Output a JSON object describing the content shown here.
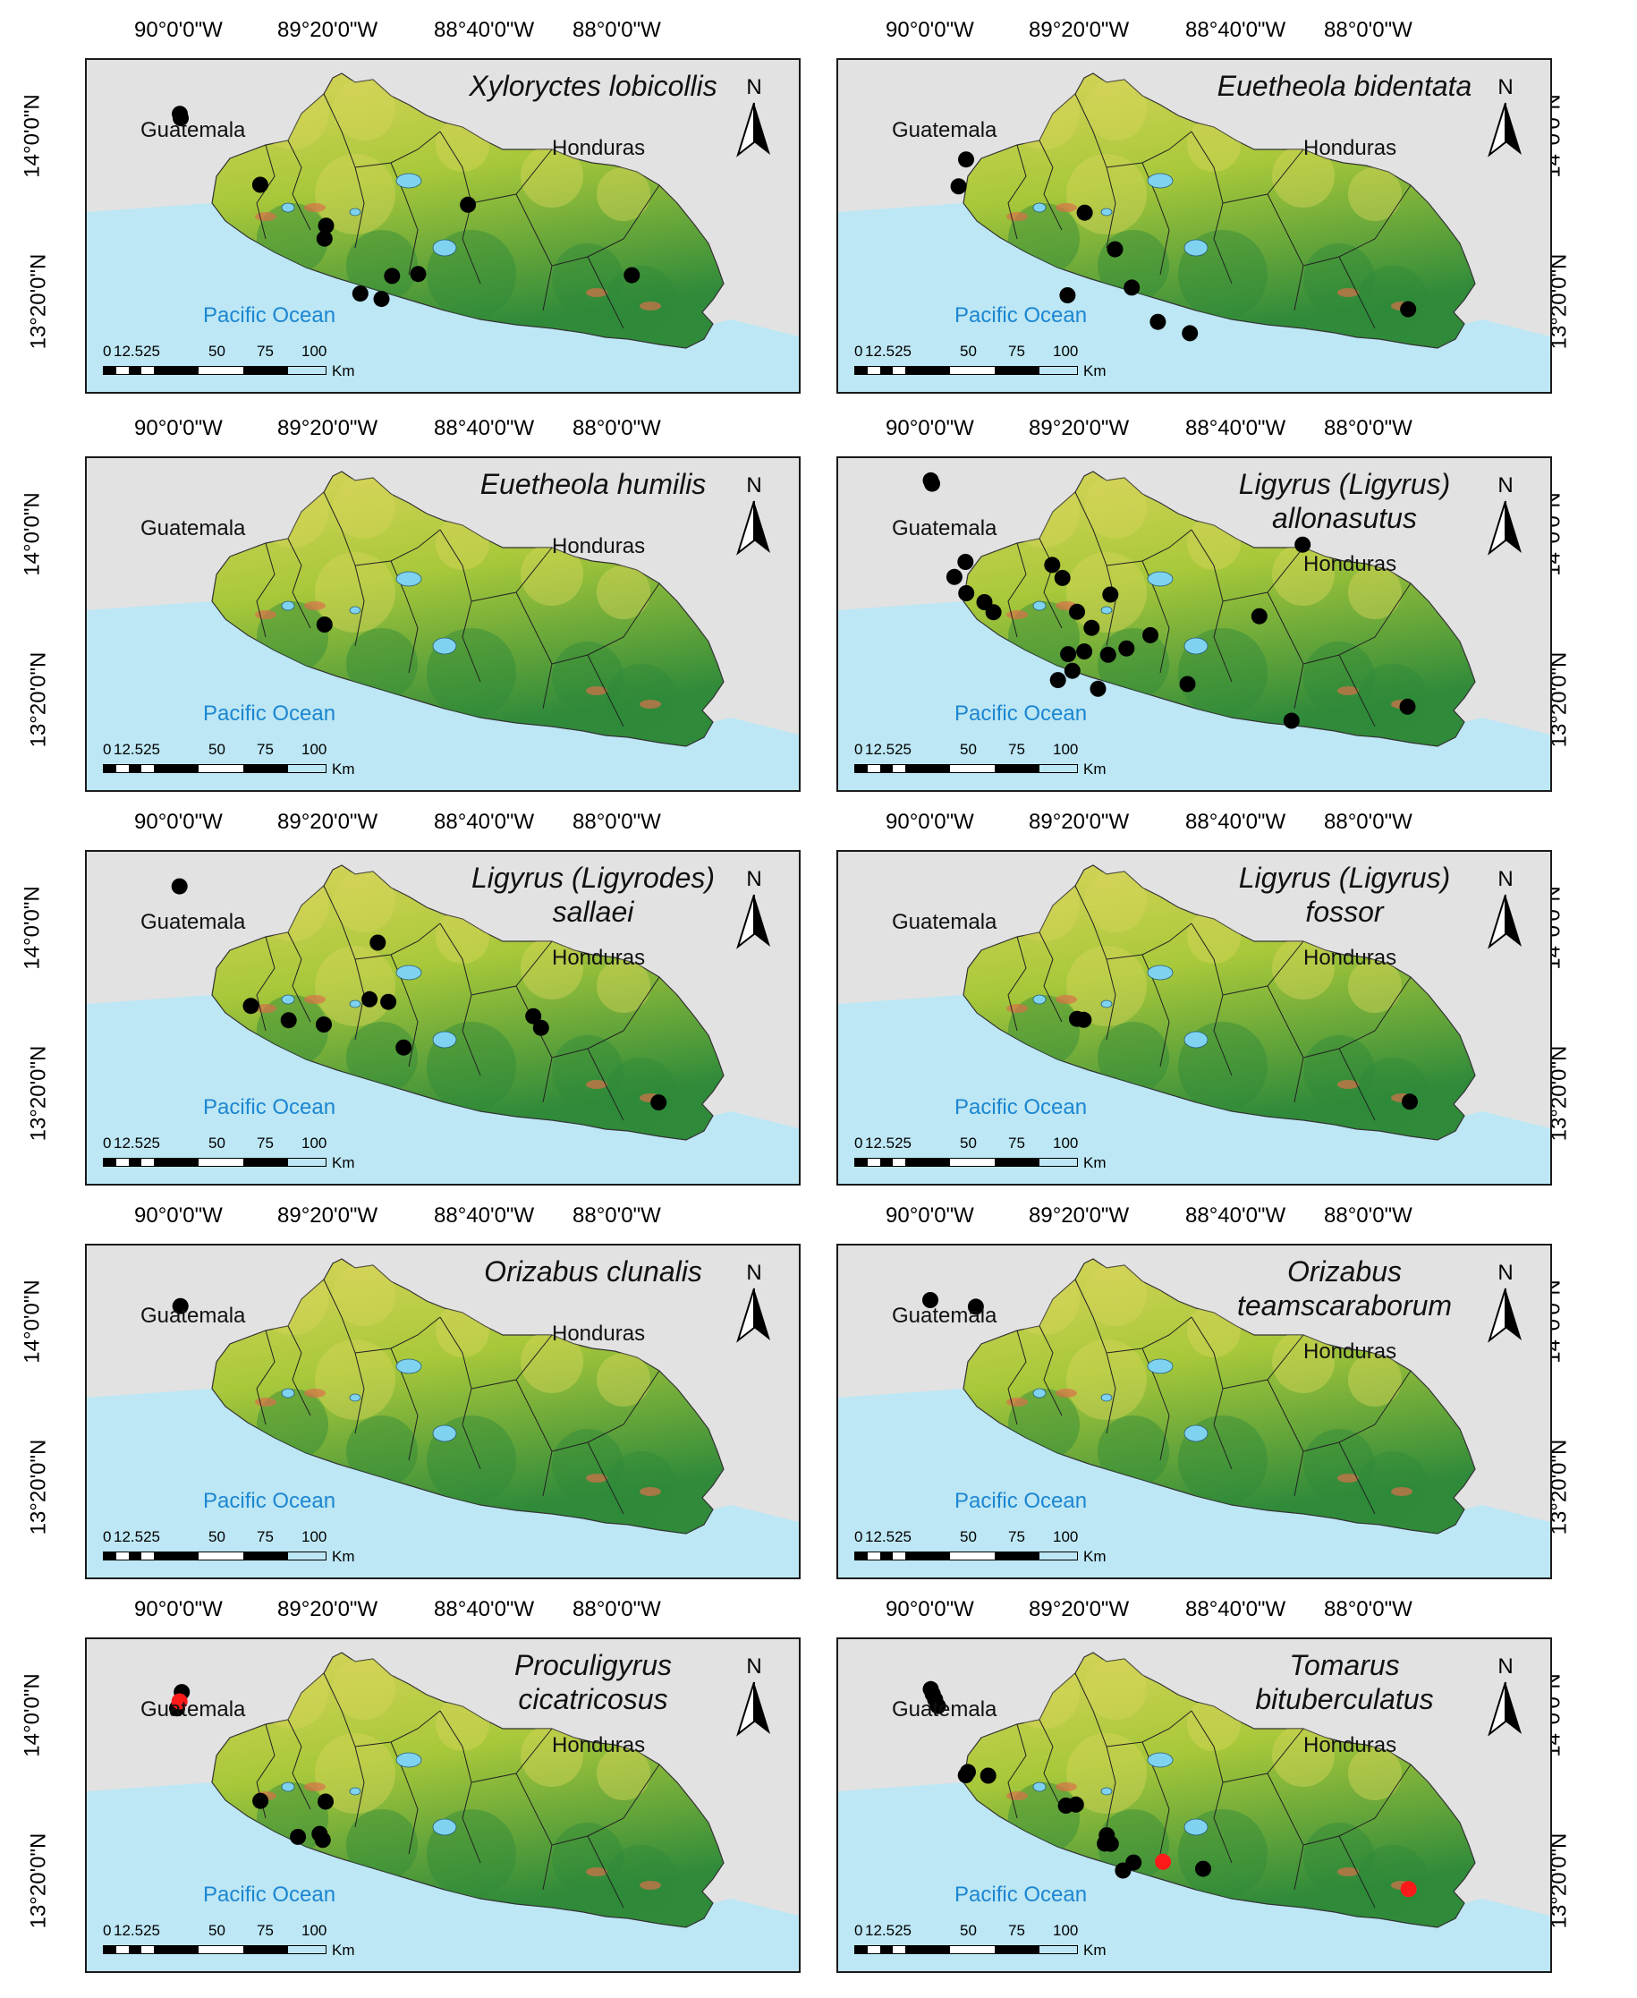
{
  "longitude_labels": [
    "90°0'0\"W",
    "89°20'0\"W",
    "88°40'0\"W",
    "88°0'0\"W"
  ],
  "latitude_labels": [
    "14°0'0\"N",
    "13°20'0\"N"
  ],
  "labels": {
    "guatemala": "Guatemala",
    "honduras": "Honduras",
    "ocean": "Pacific Ocean",
    "north": "N",
    "km": "Km"
  },
  "scale_numbers": [
    "0",
    "12.525",
    "50",
    "75",
    "100"
  ],
  "colors": {
    "sea": "#bde7f4",
    "land_low": "#2f8a3a",
    "land_mid": "#a8c83a",
    "land_high": "#d8d45a",
    "peak": "#d9704a",
    "record": "#000000",
    "new_record": "#ff1a1a",
    "frame_bg": "#e2e2e2"
  },
  "panels": [
    {
      "species": [
        "Xyloryctes lobicollis"
      ],
      "records": [
        [
          88.6,
          23.5
        ],
        [
          89.0,
          24.8
        ],
        [
          125.0,
          44.8
        ],
        [
          154.8,
          57.1
        ],
        [
          154.1,
          61.0
        ],
        [
          184.7,
          72.2
        ],
        [
          196.5,
          71.6
        ],
        [
          170.3,
          77.5
        ],
        [
          179.9,
          79.1
        ],
        [
          219.0,
          50.8
        ],
        [
          293.2,
          72.0
        ]
      ]
    },
    {
      "species": [
        "Euetheola bidentata"
      ],
      "records": [
        [
          104.4,
          37.2
        ],
        [
          101.0,
          45.3
        ],
        [
          158.1,
          53.2
        ],
        [
          150.3,
          78.0
        ],
        [
          171.8,
          64.2
        ],
        [
          179.4,
          75.7
        ],
        [
          191.2,
          86.0
        ],
        [
          205.7,
          89.4
        ],
        [
          304.5,
          82.2
        ]
      ]
    },
    {
      "species": [
        "Euetheola humilis"
      ],
      "records": [
        [
          154.1,
          57.3
        ]
      ]
    },
    {
      "species": [
        "Ligyrus (Ligyrus)",
        "allonasutus"
      ],
      "records": [
        [
          88.4,
          14.0
        ],
        [
          89.0,
          15.0
        ],
        [
          104.1,
          38.5
        ],
        [
          99.1,
          43.0
        ],
        [
          104.5,
          47.9
        ],
        [
          112.7,
          50.6
        ],
        [
          116.8,
          53.6
        ],
        [
          143.4,
          39.4
        ],
        [
          148.0,
          43.3
        ],
        [
          154.6,
          53.5
        ],
        [
          169.7,
          48.3
        ],
        [
          161.2,
          58.3
        ],
        [
          168.7,
          66.4
        ],
        [
          177.0,
          64.5
        ],
        [
          187.8,
          60.5
        ],
        [
          150.6,
          66.2
        ],
        [
          157.9,
          65.4
        ],
        [
          152.5,
          71.2
        ],
        [
          146.0,
          74.0
        ],
        [
          164.1,
          76.6
        ],
        [
          204.6,
          75.2
        ],
        [
          237.1,
          54.8
        ],
        [
          256.7,
          33.3
        ],
        [
          304.2,
          82.0
        ],
        [
          251.7,
          86.2
        ]
      ]
    },
    {
      "species": [
        "Ligyrus (Ligyrodes)",
        "sallaei"
      ],
      "records": [
        [
          88.5,
          17.7
        ],
        [
          153.8,
          59.2
        ],
        [
          178.2,
          34.6
        ],
        [
          174.5,
          51.6
        ],
        [
          183.0,
          52.4
        ],
        [
          120.8,
          53.6
        ],
        [
          137.9,
          57.9
        ],
        [
          189.9,
          66.1
        ],
        [
          252.1,
          60.2
        ],
        [
          248.6,
          56.7
        ],
        [
          305.3,
          82.6
        ]
      ]
    },
    {
      "species": [
        "Ligyrus (Ligyrus)",
        "fossor"
      ],
      "records": [
        [
          154.6,
          57.5
        ],
        [
          157.6,
          57.8
        ],
        [
          305.2,
          82.4
        ]
      ]
    },
    {
      "species": [
        "Orizabus clunalis"
      ],
      "records": [
        [
          88.9,
          25.5
        ]
      ]
    },
    {
      "species": [
        "Orizabus",
        "teamscaraborum"
      ],
      "records": [
        [
          88.2,
          23.7
        ],
        [
          108.8,
          25.7
        ]
      ]
    },
    {
      "species": [
        "Proculigyrus",
        "cicatricosus"
      ],
      "records": [
        [
          89.5,
          23.2
        ],
        [
          87.4,
          28.1
        ],
        [
          154.6,
          56.1
        ],
        [
          125.1,
          55.9
        ],
        [
          151.9,
          65.8
        ],
        [
          153.3,
          67.6
        ],
        [
          142.1,
          66.7
        ]
      ],
      "new_records": [
        [
          88.5,
          26.0
        ]
      ]
    },
    {
      "species": [
        "Tomarus",
        "bituberculatus"
      ],
      "records": [
        [
          88.4,
          22.3
        ],
        [
          89.3,
          23.8
        ],
        [
          90.4,
          25.4
        ],
        [
          91.7,
          27.4
        ],
        [
          114.4,
          48.3
        ],
        [
          105.2,
          47.2
        ],
        [
          104.3,
          48.2
        ],
        [
          149.6,
          57.3
        ],
        [
          154.1,
          57.0
        ],
        [
          169.9,
          68.8
        ],
        [
          168.1,
          66.2
        ],
        [
          167.2,
          68.7
        ],
        [
          211.7,
          76.3
        ],
        [
          175.4,
          76.8
        ],
        [
          180.2,
          74.4
        ]
      ],
      "new_records": [
        [
          193.5,
          74.2
        ],
        [
          304.7,
          82.4
        ]
      ]
    }
  ]
}
